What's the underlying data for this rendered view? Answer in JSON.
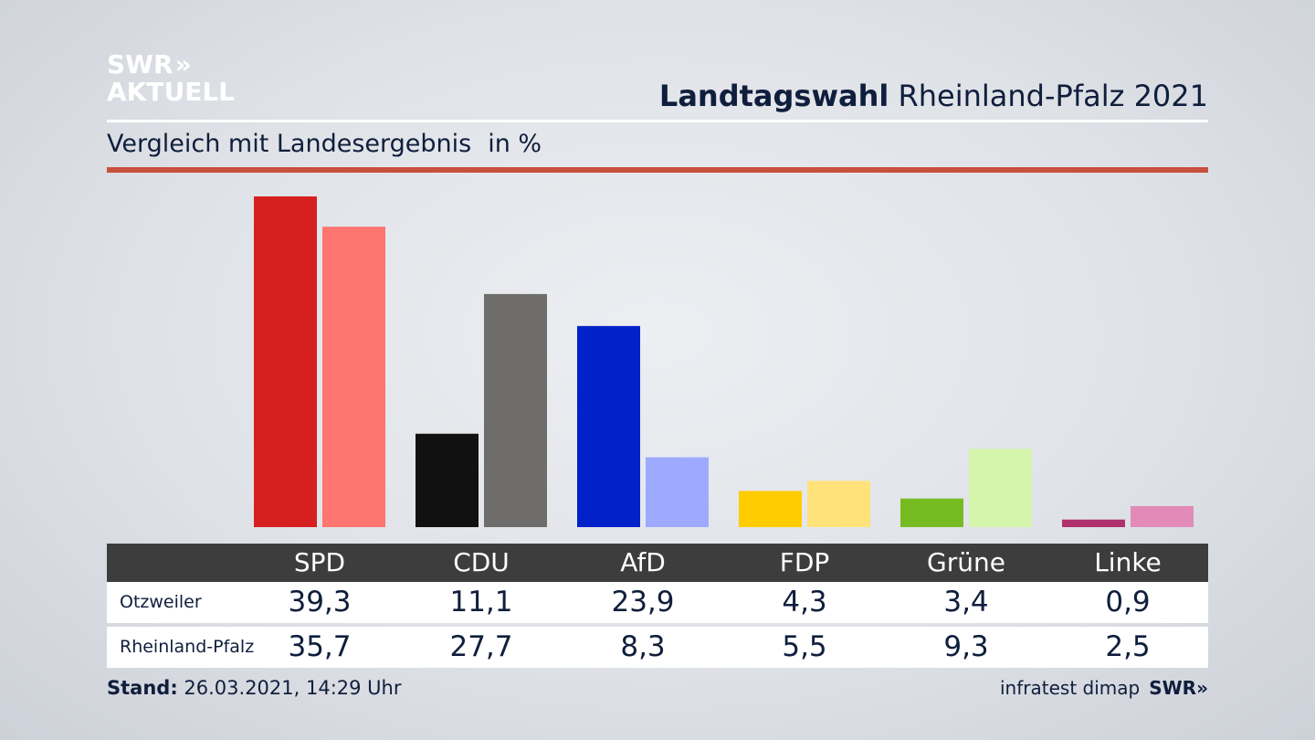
{
  "logo": {
    "line1": "SWR",
    "arrows": "»",
    "line2": "AKTUELL"
  },
  "header": {
    "title_bold": "Landtagswahl",
    "title_rest": " Rheinland-Pfalz 2021"
  },
  "subtitle": {
    "text": "Vergleich mit Landesergebnis",
    "unit": "in %"
  },
  "colors": {
    "accent_rule": "#c8503c",
    "header_band": "#3d3d3d",
    "local": [
      "#d61f1f",
      "#111111",
      "#0022c8",
      "#ffcc00",
      "#77bb22",
      "#b0306e"
    ],
    "state": [
      "#ff7570",
      "#6e6d6b",
      "#9eaaff",
      "#ffe27a",
      "#d5f5ad",
      "#e28bb8"
    ]
  },
  "chart_data": {
    "type": "bar",
    "categories": [
      "SPD",
      "CDU",
      "AfD",
      "FDP",
      "Grüne",
      "Linke"
    ],
    "series": [
      {
        "name": "Otzweiler",
        "values": [
          39.3,
          11.1,
          23.9,
          4.3,
          3.4,
          0.9
        ]
      },
      {
        "name": "Rheinland-Pfalz",
        "values": [
          35.7,
          27.7,
          8.3,
          5.5,
          9.3,
          2.5
        ]
      }
    ],
    "ylim": [
      0,
      40
    ]
  },
  "table": {
    "row_labels": [
      "Otzweiler",
      "Rheinland-Pfalz"
    ],
    "row1": [
      "39,3",
      "11,1",
      "23,9",
      "4,3",
      "3,4",
      "0,9"
    ],
    "row2": [
      "35,7",
      "27,7",
      "8,3",
      "5,5",
      "9,3",
      "2,5"
    ]
  },
  "footer": {
    "stand_label": "Stand:",
    "stand_value": " 26.03.2021, 14:29 Uhr",
    "source": "infratest dimap",
    "brand": "SWR»"
  }
}
